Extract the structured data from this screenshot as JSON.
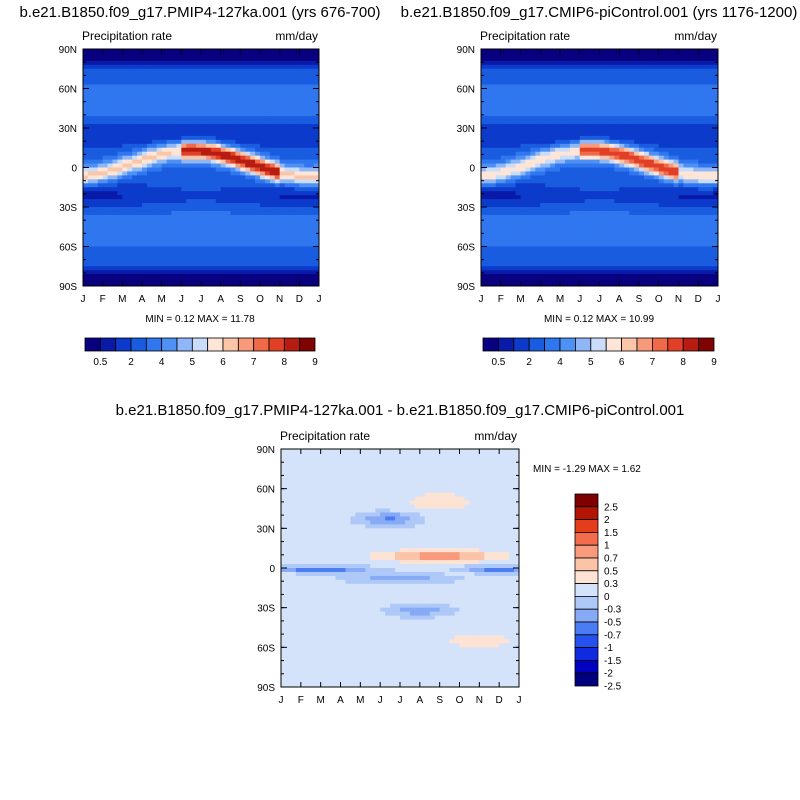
{
  "palettes": {
    "precip": [
      "#08007f",
      "#0a1aa8",
      "#0c3acb",
      "#1a5ce0",
      "#2f76ef",
      "#4e91f5",
      "#8fb7f7",
      "#c9ddfa",
      "#fde6d7",
      "#fbc6a8",
      "#f79a79",
      "#f06a4a",
      "#e23f27",
      "#b81c10",
      "#7f0300"
    ],
    "diff": [
      "#00007f",
      "#0000c0",
      "#0f2be0",
      "#2552ee",
      "#4a7cf4",
      "#86aaf6",
      "#aec8f8",
      "#d4e3fa",
      "#fde3d3",
      "#fbc3a8",
      "#f89b7c",
      "#f36c4d",
      "#e33d1b",
      "#b31505",
      "#7f0000"
    ]
  },
  "charts": [
    {
      "title": "b.e21.B1850.f09_g17.PMIP4-127ka.001 (yrs 676-700)",
      "left_label": "Precipitation rate",
      "right_label": "mm/day",
      "stats": "MIN =   0.12 MAX =  11.78",
      "months": [
        "J",
        "F",
        "M",
        "A",
        "M",
        "J",
        "J",
        "A",
        "S",
        "O",
        "N",
        "D",
        "J"
      ],
      "lat_labels": [
        "90N",
        "60N",
        "30N",
        "0",
        "30S",
        "60S",
        "90S"
      ],
      "colorbar_labels": [
        "0.5",
        "2",
        "4",
        "5",
        "6",
        "7",
        "8",
        "9"
      ],
      "itcz_peak_level": 14
    },
    {
      "title": "b.e21.B1850.f09_g17.CMIP6-piControl.001 (yrs 1176-1200)",
      "left_label": "Precipitation rate",
      "right_label": "mm/day",
      "stats": "MIN =   0.12 MAX =  10.99",
      "months": [
        "J",
        "F",
        "M",
        "A",
        "M",
        "J",
        "J",
        "A",
        "S",
        "O",
        "N",
        "D",
        "J"
      ],
      "lat_labels": [
        "90N",
        "60N",
        "30N",
        "0",
        "30S",
        "60S",
        "90S"
      ],
      "colorbar_labels": [
        "0.5",
        "2",
        "4",
        "5",
        "6",
        "7",
        "8",
        "9"
      ],
      "itcz_peak_level": 13
    },
    {
      "title": "b.e21.B1850.f09_g17.PMIP4-127ka.001 - b.e21.B1850.f09_g17.CMIP6-piControl.001",
      "left_label": "Precipitation rate",
      "right_label": "mm/day",
      "stats": "MIN =  -1.29 MAX =   1.62",
      "months": [
        "J",
        "F",
        "M",
        "A",
        "M",
        "J",
        "J",
        "A",
        "S",
        "O",
        "N",
        "D",
        "J"
      ],
      "lat_labels": [
        "90N",
        "60N",
        "30N",
        "0",
        "30S",
        "60S",
        "90S"
      ],
      "colorbar_labels": [
        "2.5",
        "2",
        "1.5",
        "1",
        "0.7",
        "0.5",
        "0.3",
        "0",
        "-0.3",
        "-0.5",
        "-0.7",
        "-1",
        "-1.5",
        "-2",
        "-2.5"
      ]
    }
  ],
  "chart_data": [
    {
      "type": "heatmap",
      "title": "b.e21.B1850.f09_g17.PMIP4-127ka.001 (yrs 676-700)",
      "variable": "Precipitation rate",
      "units": "mm/day",
      "x": [
        "J",
        "F",
        "M",
        "A",
        "M",
        "J",
        "J",
        "A",
        "S",
        "O",
        "N",
        "D",
        "J"
      ],
      "y": [
        "90N",
        "60N",
        "30N",
        "0",
        "30S",
        "60S",
        "90S"
      ],
      "min": 0.12,
      "max": 11.78,
      "levels": [
        0.5,
        1,
        2,
        3,
        4,
        4.5,
        5,
        5.5,
        6,
        6.5,
        7,
        7.5,
        8,
        9
      ]
    },
    {
      "type": "heatmap",
      "title": "b.e21.B1850.f09_g17.CMIP6-piControl.001 (yrs 1176-1200)",
      "variable": "Precipitation rate",
      "units": "mm/day",
      "x": [
        "J",
        "F",
        "M",
        "A",
        "M",
        "J",
        "J",
        "A",
        "S",
        "O",
        "N",
        "D",
        "J"
      ],
      "y": [
        "90N",
        "60N",
        "30N",
        "0",
        "30S",
        "60S",
        "90S"
      ],
      "min": 0.12,
      "max": 10.99,
      "levels": [
        0.5,
        1,
        2,
        3,
        4,
        4.5,
        5,
        5.5,
        6,
        6.5,
        7,
        7.5,
        8,
        9
      ]
    },
    {
      "type": "heatmap",
      "title": "b.e21.B1850.f09_g17.PMIP4-127ka.001 - b.e21.B1850.f09_g17.CMIP6-piControl.001",
      "variable": "Precipitation rate",
      "units": "mm/day",
      "x": [
        "J",
        "F",
        "M",
        "A",
        "M",
        "J",
        "J",
        "A",
        "S",
        "O",
        "N",
        "D",
        "J"
      ],
      "y": [
        "90N",
        "60N",
        "30N",
        "0",
        "30S",
        "60S",
        "90S"
      ],
      "min": -1.29,
      "max": 1.62,
      "levels": [
        -2.5,
        -2,
        -1.5,
        -1,
        -0.7,
        -0.5,
        -0.3,
        0,
        0.3,
        0.5,
        0.7,
        1,
        1.5,
        2,
        2.5
      ]
    }
  ]
}
